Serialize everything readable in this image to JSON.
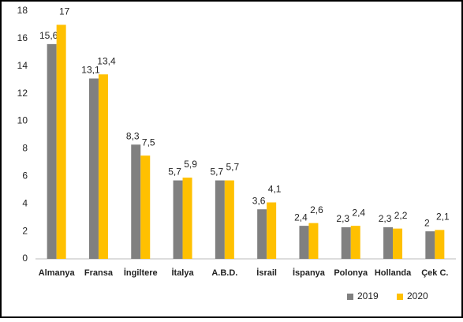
{
  "chart_data": {
    "type": "bar",
    "categories": [
      "Almanya",
      "Fransa",
      "İngiltere",
      "İtalya",
      "A.B.D.",
      "İsrail",
      "İspanya",
      "Polonya",
      "Hollanda",
      "Çek C."
    ],
    "series": [
      {
        "name": "2019",
        "color": "#808080",
        "values": [
          15.6,
          13.1,
          8.3,
          5.7,
          5.7,
          3.6,
          2.4,
          2.3,
          2.3,
          2
        ],
        "value_labels": [
          "15,6",
          "13,1",
          "8,3",
          "5,7",
          "5,7",
          "3,6",
          "2,4",
          "2,3",
          "2,3",
          "2"
        ]
      },
      {
        "name": "2020",
        "color": "#ffc000",
        "values": [
          17,
          13.4,
          7.5,
          5.9,
          5.7,
          4.1,
          2.6,
          2.4,
          2.2,
          2.1
        ],
        "value_labels": [
          "17",
          "13,4",
          "7,5",
          "5,9",
          "5,7",
          "4,1",
          "2,6",
          "2,4",
          "2,2",
          "2,1"
        ]
      }
    ],
    "ylim": [
      0,
      18
    ],
    "yticks": [
      0,
      2,
      4,
      6,
      8,
      10,
      12,
      14,
      16,
      18
    ],
    "grid": false,
    "legend": "bottom-right"
  }
}
